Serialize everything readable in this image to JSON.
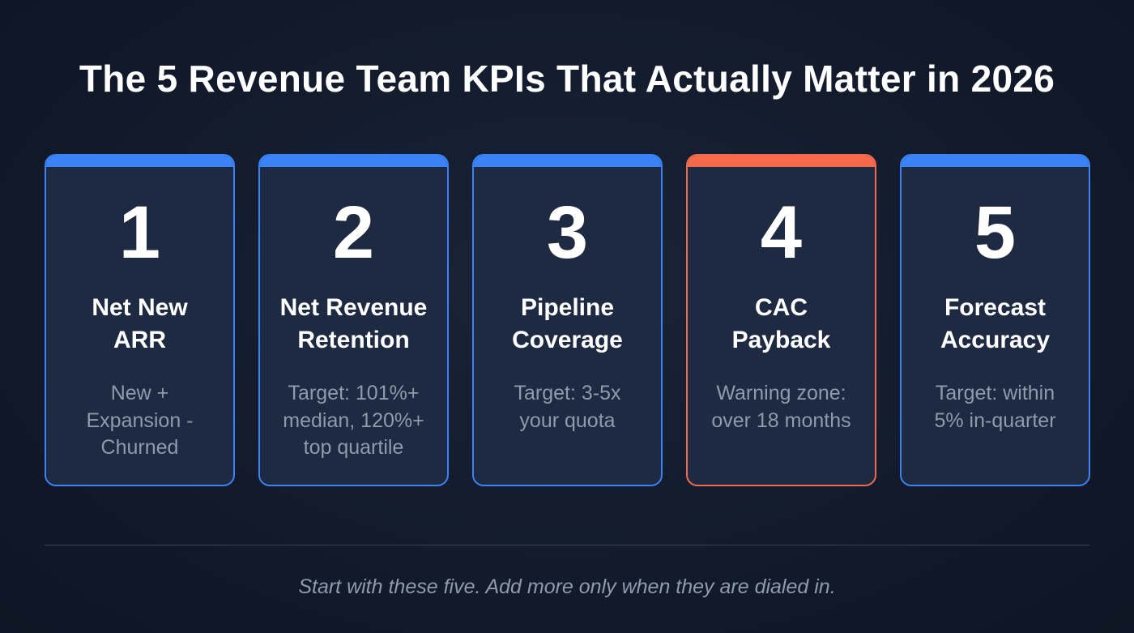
{
  "title": "The 5 Revenue Team KPIs That Actually Matter in 2026",
  "cards": [
    {
      "number": "1",
      "name_line1": "Net New",
      "name_line2": "ARR",
      "desc": [
        "New +",
        "Expansion -",
        "Churned"
      ]
    },
    {
      "number": "2",
      "name_line1": "Net Revenue",
      "name_line2": "Retention",
      "desc": [
        "Target: 101%+",
        "median, 120%+",
        "top quartile"
      ]
    },
    {
      "number": "3",
      "name_line1": "Pipeline",
      "name_line2": "Coverage",
      "desc": [
        "Target: 3-5x",
        "your quota",
        ""
      ]
    },
    {
      "number": "4",
      "name_line1": "CAC",
      "name_line2": "Payback",
      "desc": [
        "Warning zone:",
        "over 18 months",
        ""
      ]
    },
    {
      "number": "5",
      "name_line1": "Forecast",
      "name_line2": "Accuracy",
      "desc": [
        "Target: within",
        "5% in-quarter",
        ""
      ]
    }
  ],
  "footer": "Start with these five. Add more only when they are dialed in.",
  "colors": {
    "accent": "#3b82f6",
    "warning": "#f46a4b",
    "background": "#121a2b"
  }
}
